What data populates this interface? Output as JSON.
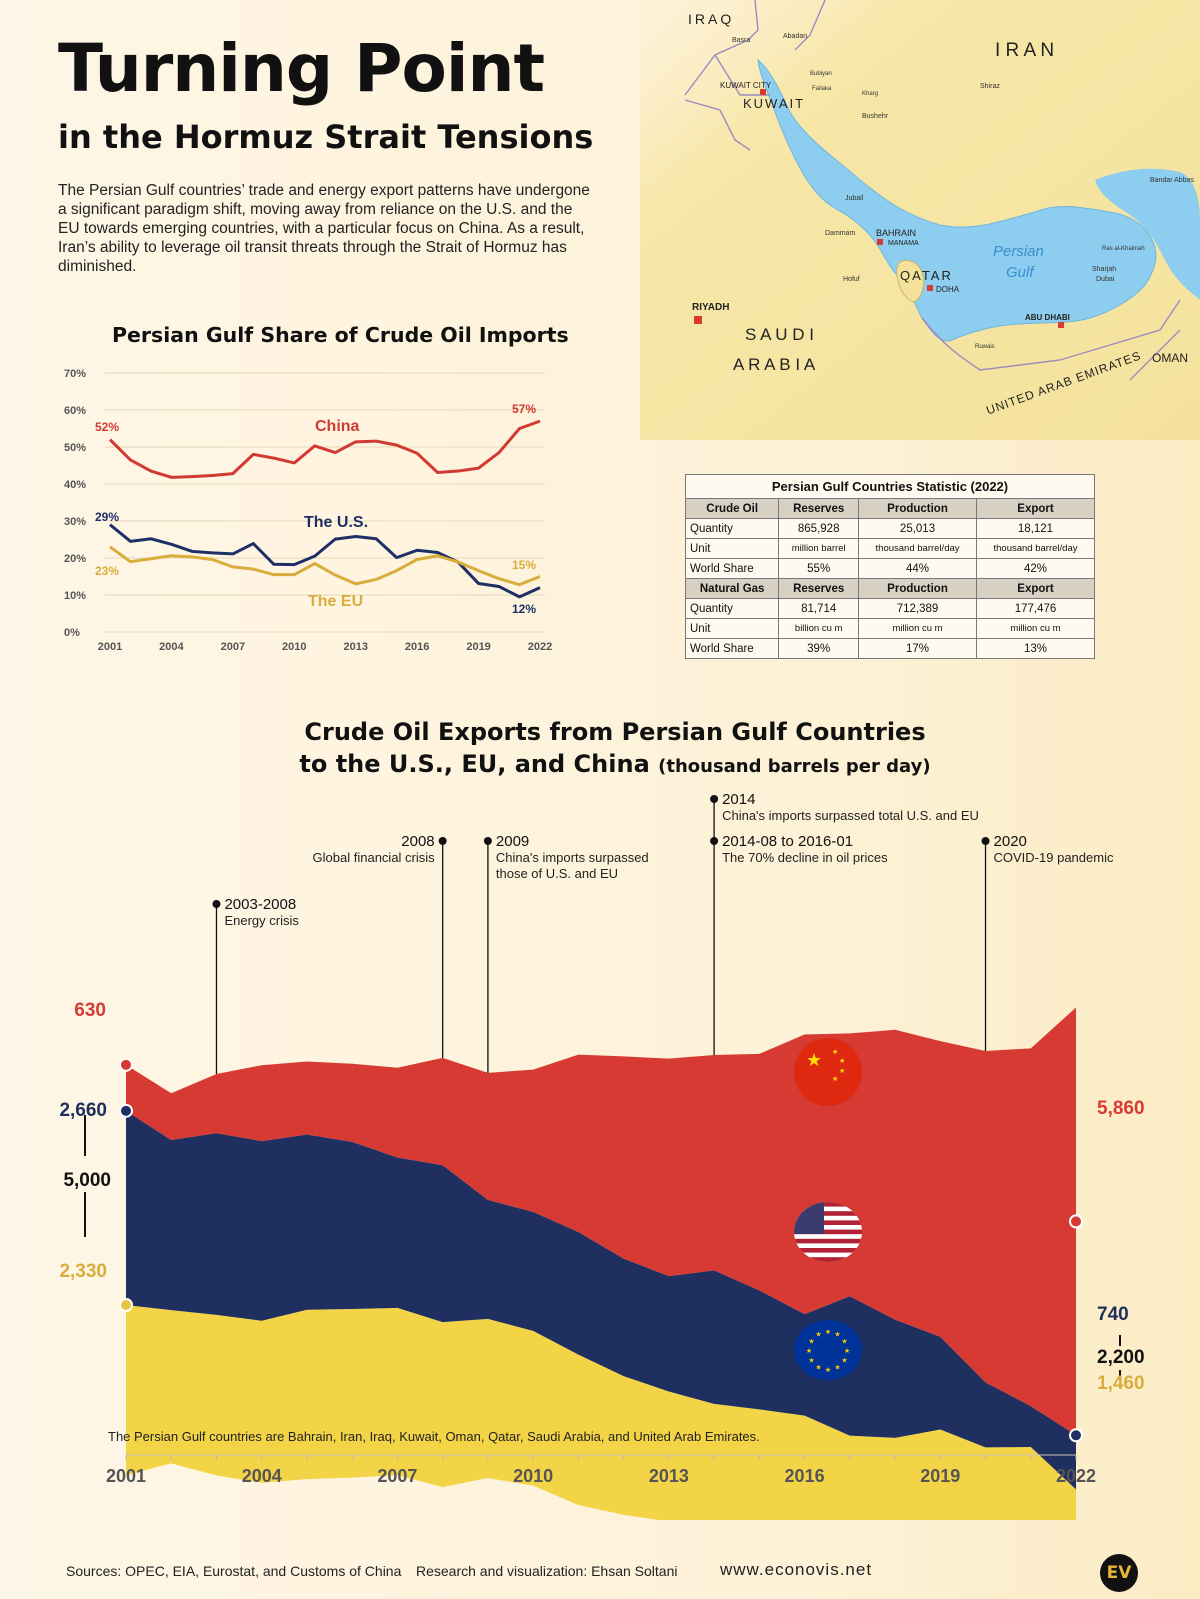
{
  "header": {
    "title": "Turning Point",
    "subtitle": "in the Hormuz Strait Tensions",
    "intro": "The Persian Gulf countries’ trade and energy export patterns have undergone a significant paradigm shift, moving away from reliance on the U.S. and the EU towards emerging countries, with a particular focus on China. As a result, Iran’s ability to leverage oil transit threats through the Strait of Hormuz has diminished."
  },
  "map": {
    "labels": {
      "iraq": "IRAQ",
      "iran": "I R A N",
      "kuwait": "KUWAIT",
      "kuwait_city": "KUWAIT CITY",
      "bahrain": "BAHRAIN",
      "manama": "MANAMA",
      "qatar": "QATAR",
      "doha": "DOHA",
      "riyadh": "RIYADH",
      "saudi1": "S A U D I",
      "saudi2": "A R A B I A",
      "uae": "UNITED ARAB EMIRATES",
      "abu_dhabi": "ABU DHABI",
      "oman": "OMAN",
      "persian": "Persian",
      "gulf": "Gulf",
      "basra": "Basra",
      "abadan": "Abadan",
      "shiraz": "Shiraz",
      "bushehr": "Bushehr",
      "jubail": "Jubail",
      "dammam": "Dammam",
      "hofuf": "Hofuf",
      "bandar_abbas": "Bandar Abbas",
      "dubai": "Dubai",
      "sharjah": "Sharjah",
      "ras_al_khaimah": "Ras al-Khaimah",
      "ruwais": "Ruwais",
      "kharg": "Kharg",
      "bubiyan": "Bubiyan",
      "failaka": "Failaka"
    },
    "colors": {
      "land": "#f6e7a6",
      "water": "#8dcdef",
      "border": "#9c8bbf",
      "capital": "#d93a30"
    }
  },
  "line_chart": {
    "title": "Persian Gulf Share of Crude Oil Imports",
    "y_ticks": [
      "0%",
      "10%",
      "20%",
      "30%",
      "40%",
      "50%",
      "60%",
      "70%"
    ],
    "x_ticks": [
      "2001",
      "2004",
      "2007",
      "2010",
      "2013",
      "2016",
      "2019",
      "2022"
    ],
    "labels": {
      "china": "China",
      "us": "The U.S.",
      "eu": "The EU"
    },
    "annotations": {
      "china_start": "52%",
      "china_end": "57%",
      "us_start": "29%",
      "us_end": "12%",
      "eu_start": "23%",
      "eu_end": "15%"
    }
  },
  "stats_table": {
    "caption": "Persian Gulf Countries Statistic (2022)",
    "oil": {
      "header": [
        "Crude Oil",
        "Reserves",
        "Production",
        "Export"
      ],
      "rows": [
        [
          "Quantity",
          "865,928",
          "25,013",
          "18,121"
        ],
        [
          "Unit",
          "million barrel",
          "thousand barrel/day",
          "thousand barrel/day"
        ],
        [
          "World Share",
          "55%",
          "44%",
          "42%"
        ]
      ]
    },
    "gas": {
      "header": [
        "Natural Gas",
        "Reserves",
        "Production",
        "Export"
      ],
      "rows": [
        [
          "Quantity",
          "81,714",
          "712,389",
          "177,476"
        ],
        [
          "Unit",
          "billion cu m",
          "million cu m",
          "million cu m"
        ],
        [
          "World Share",
          "39%",
          "17%",
          "13%"
        ]
      ]
    }
  },
  "stream_chart": {
    "title_line1": "Crude Oil Exports from Persian Gulf Countries",
    "title_line2": "to the U.S., EU, and China",
    "title_unit": "(thousand barrels per day)",
    "x_ticks": [
      "2001",
      "2004",
      "2007",
      "2010",
      "2013",
      "2016",
      "2019",
      "2022"
    ],
    "left_labels": {
      "china": "630",
      "us": "2,660",
      "total": "5,000",
      "eu": "2,330"
    },
    "right_labels": {
      "china": "5,860",
      "us": "740",
      "total": "2,200",
      "eu": "1,460"
    },
    "events": [
      {
        "year": "2003-2008",
        "text": "Energy crisis"
      },
      {
        "year": "2008",
        "text": "Global financial crisis"
      },
      {
        "year": "2009",
        "text": "China's imports surpassed",
        "text2": "those of U.S. and EU"
      },
      {
        "year": "2014",
        "text": "China's imports surpassed total U.S. and EU"
      },
      {
        "year": "2014-08 to 2016-01",
        "text": "The 70% decline in oil prices"
      },
      {
        "year": "2020",
        "text": "COVID-19 pandemic"
      }
    ],
    "note": "The Persian Gulf countries are Bahrain, Iran, Iraq, Kuwait, Oman, Qatar, Saudi Arabia, and United Arab Emirates."
  },
  "footer": {
    "sources": "Sources: OPEC, EIA, Eurostat, and Customs of China",
    "credit": "Research and visualization: Ehsan Soltani",
    "website": "www.econovis.net",
    "logo": "EV"
  },
  "chart_data": [
    {
      "type": "line",
      "title": "Persian Gulf Share of Crude Oil Imports",
      "x": [
        2001,
        2002,
        2003,
        2004,
        2005,
        2006,
        2007,
        2008,
        2009,
        2010,
        2011,
        2012,
        2013,
        2014,
        2015,
        2016,
        2017,
        2018,
        2019,
        2020,
        2021,
        2022
      ],
      "ylim": [
        0,
        70
      ],
      "y_unit": "%",
      "grid": true,
      "series": [
        {
          "name": "China",
          "color": "#d03a32",
          "values": [
            52,
            46.5,
            43.5,
            41.8,
            42,
            42.3,
            42.8,
            48,
            47,
            45.7,
            50.3,
            48.5,
            51.4,
            51.6,
            50.5,
            48.3,
            43.1,
            43.5,
            44.3,
            48.5,
            55,
            57
          ]
        },
        {
          "name": "The U.S.",
          "color": "#1e2f66",
          "values": [
            29,
            24.5,
            25.2,
            23.7,
            21.8,
            21.4,
            21.1,
            23.9,
            18.3,
            18.2,
            20.5,
            25.1,
            25.8,
            25.2,
            20.1,
            22.1,
            21.5,
            18.9,
            13.1,
            12.3,
            9.5,
            12
          ]
        },
        {
          "name": "The EU",
          "color": "#d9ad3c",
          "values": [
            23,
            19,
            19.8,
            20.6,
            20.3,
            19.6,
            17.6,
            17,
            15.5,
            15.5,
            18.5,
            15.4,
            13,
            14.2,
            16.6,
            19.6,
            20.6,
            18.9,
            16.6,
            14.4,
            12.8,
            15
          ]
        }
      ]
    },
    {
      "type": "area",
      "title": "Crude Oil Exports from Persian Gulf Countries to the U.S., EU, and China",
      "y_unit": "thousand barrels per day",
      "x": [
        2001,
        2002,
        2003,
        2004,
        2005,
        2006,
        2007,
        2008,
        2009,
        2010,
        2011,
        2012,
        2013,
        2014,
        2015,
        2016,
        2017,
        2018,
        2019,
        2020,
        2021,
        2022
      ],
      "series": [
        {
          "name": "EU",
          "color": "#f4d447",
          "values": [
            2330,
            2100,
            2200,
            2220,
            2320,
            2310,
            2290,
            2260,
            2180,
            2120,
            2060,
            1900,
            1780,
            1720,
            1690,
            1780,
            1650,
            1660,
            1640,
            1450,
            1470,
            1460
          ]
        },
        {
          "name": "U.S.",
          "color": "#1e2f60",
          "values": [
            2660,
            2330,
            2490,
            2460,
            2400,
            2290,
            2060,
            2150,
            1630,
            1630,
            1680,
            1610,
            1580,
            1830,
            1630,
            1390,
            1910,
            1620,
            1270,
            890,
            560,
            740
          ]
        },
        {
          "name": "China",
          "color": "#d63a33",
          "values": [
            630,
            640,
            810,
            1040,
            1000,
            1070,
            1230,
            1470,
            1740,
            1950,
            2430,
            2770,
            2980,
            2950,
            3240,
            3830,
            3600,
            3970,
            4050,
            4540,
            4900,
            5860
          ]
        }
      ],
      "start_total": 5000,
      "end_total": 2200
    }
  ]
}
